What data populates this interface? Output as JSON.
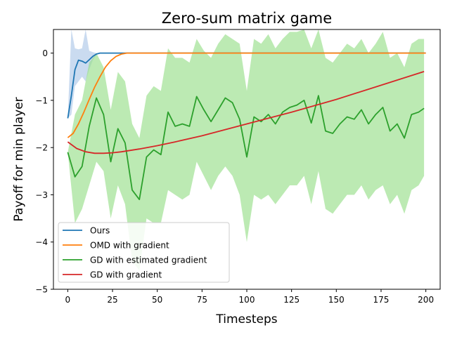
{
  "chart_data": {
    "type": "line",
    "title": "Zero-sum matrix game",
    "xlabel": "Timesteps",
    "ylabel": "Payoff for min player",
    "xlim": [
      -8,
      208
    ],
    "ylim": [
      -5,
      0.5
    ],
    "xticks": [
      0,
      25,
      50,
      75,
      100,
      125,
      150,
      175,
      200
    ],
    "yticks": [
      0,
      -1,
      -2,
      -3,
      -4,
      -5
    ],
    "legend_position": "lower-left",
    "grid": false,
    "series": [
      {
        "name": "Ours",
        "color": "#1f77b4",
        "band_color": "#aec7e8",
        "x": [
          0,
          2,
          4,
          6,
          8,
          10,
          12,
          14,
          16,
          18,
          20,
          25,
          200
        ],
        "y": [
          -1.38,
          -0.9,
          -0.35,
          -0.15,
          -0.17,
          -0.21,
          -0.14,
          -0.07,
          -0.02,
          0.0,
          0.0,
          0.0,
          0.0
        ],
        "band_upper": [
          -1.38,
          0.5,
          0.1,
          0.08,
          0.1,
          0.5,
          0.05,
          0.02,
          0.0,
          0.0,
          0.0,
          0.0,
          0.0
        ],
        "band_lower": [
          -1.38,
          -1.3,
          -0.7,
          -0.6,
          -0.5,
          -0.6,
          -0.35,
          -0.15,
          -0.04,
          0.0,
          0.0,
          0.0,
          0.0
        ]
      },
      {
        "name": "OMD with gradient",
        "color": "#ff7f0e",
        "x": [
          0,
          3,
          6,
          9,
          12,
          15,
          18,
          21,
          24,
          27,
          30,
          33,
          36,
          200
        ],
        "y": [
          -1.79,
          -1.7,
          -1.5,
          -1.25,
          -0.98,
          -0.72,
          -0.5,
          -0.3,
          -0.16,
          -0.07,
          -0.02,
          0.0,
          0.0,
          0.0
        ]
      },
      {
        "name": "GD with estimated gradient",
        "color": "#2ca02c",
        "band_color": "#98df8a",
        "x": [
          0,
          4,
          8,
          12,
          16,
          20,
          24,
          28,
          32,
          36,
          40,
          44,
          48,
          52,
          56,
          60,
          64,
          68,
          72,
          76,
          80,
          84,
          88,
          92,
          96,
          100,
          104,
          108,
          112,
          116,
          120,
          124,
          128,
          132,
          136,
          140,
          144,
          148,
          152,
          156,
          160,
          164,
          168,
          172,
          176,
          180,
          184,
          188,
          192,
          196,
          199
        ],
        "y": [
          -2.1,
          -2.62,
          -2.4,
          -1.55,
          -0.95,
          -1.3,
          -2.3,
          -1.6,
          -1.9,
          -2.9,
          -3.1,
          -2.2,
          -2.05,
          -2.15,
          -1.25,
          -1.55,
          -1.5,
          -1.55,
          -0.92,
          -1.2,
          -1.45,
          -1.2,
          -0.95,
          -1.05,
          -1.4,
          -2.2,
          -1.35,
          -1.45,
          -1.3,
          -1.5,
          -1.25,
          -1.15,
          -1.1,
          -1.0,
          -1.48,
          -0.9,
          -1.65,
          -1.7,
          -1.5,
          -1.35,
          -1.4,
          -1.2,
          -1.5,
          -1.3,
          -1.15,
          -1.65,
          -1.5,
          -1.8,
          -1.3,
          -1.25,
          -1.17
        ],
        "band_upper": [
          -2.1,
          -1.3,
          -1.0,
          -0.2,
          0.0,
          -0.3,
          -1.2,
          -0.4,
          -0.6,
          -1.5,
          -1.8,
          -0.9,
          -0.7,
          -0.8,
          0.1,
          -0.1,
          -0.1,
          -0.2,
          0.3,
          0.05,
          -0.1,
          0.2,
          0.4,
          0.3,
          0.2,
          -0.8,
          0.3,
          0.2,
          0.4,
          0.1,
          0.3,
          0.45,
          0.45,
          0.5,
          0.1,
          0.5,
          -0.1,
          -0.2,
          0.0,
          0.2,
          0.1,
          0.3,
          0.0,
          0.2,
          0.45,
          -0.1,
          0.0,
          -0.3,
          0.2,
          0.3,
          0.3
        ],
        "band_lower": [
          -2.1,
          -3.6,
          -3.3,
          -2.8,
          -2.3,
          -2.5,
          -3.5,
          -2.8,
          -3.2,
          -4.4,
          -4.6,
          -3.5,
          -3.6,
          -3.6,
          -2.9,
          -3.0,
          -3.1,
          -3.0,
          -2.3,
          -2.6,
          -2.9,
          -2.6,
          -2.4,
          -2.6,
          -3.0,
          -4.0,
          -3.0,
          -3.1,
          -3.0,
          -3.2,
          -3.0,
          -2.8,
          -2.8,
          -2.6,
          -3.2,
          -2.5,
          -3.3,
          -3.4,
          -3.2,
          -3.0,
          -3.0,
          -2.8,
          -3.1,
          -2.9,
          -2.8,
          -3.2,
          -3.0,
          -3.4,
          -2.9,
          -2.8,
          -2.6
        ]
      },
      {
        "name": "GD with gradient",
        "color": "#d62728",
        "x": [
          0,
          5,
          10,
          15,
          20,
          25,
          30,
          40,
          50,
          60,
          75,
          100,
          125,
          150,
          175,
          199
        ],
        "y": [
          -1.88,
          -2.02,
          -2.09,
          -2.12,
          -2.12,
          -2.11,
          -2.09,
          -2.03,
          -1.96,
          -1.88,
          -1.75,
          -1.5,
          -1.25,
          -0.98,
          -0.68,
          -0.39
        ]
      }
    ]
  }
}
